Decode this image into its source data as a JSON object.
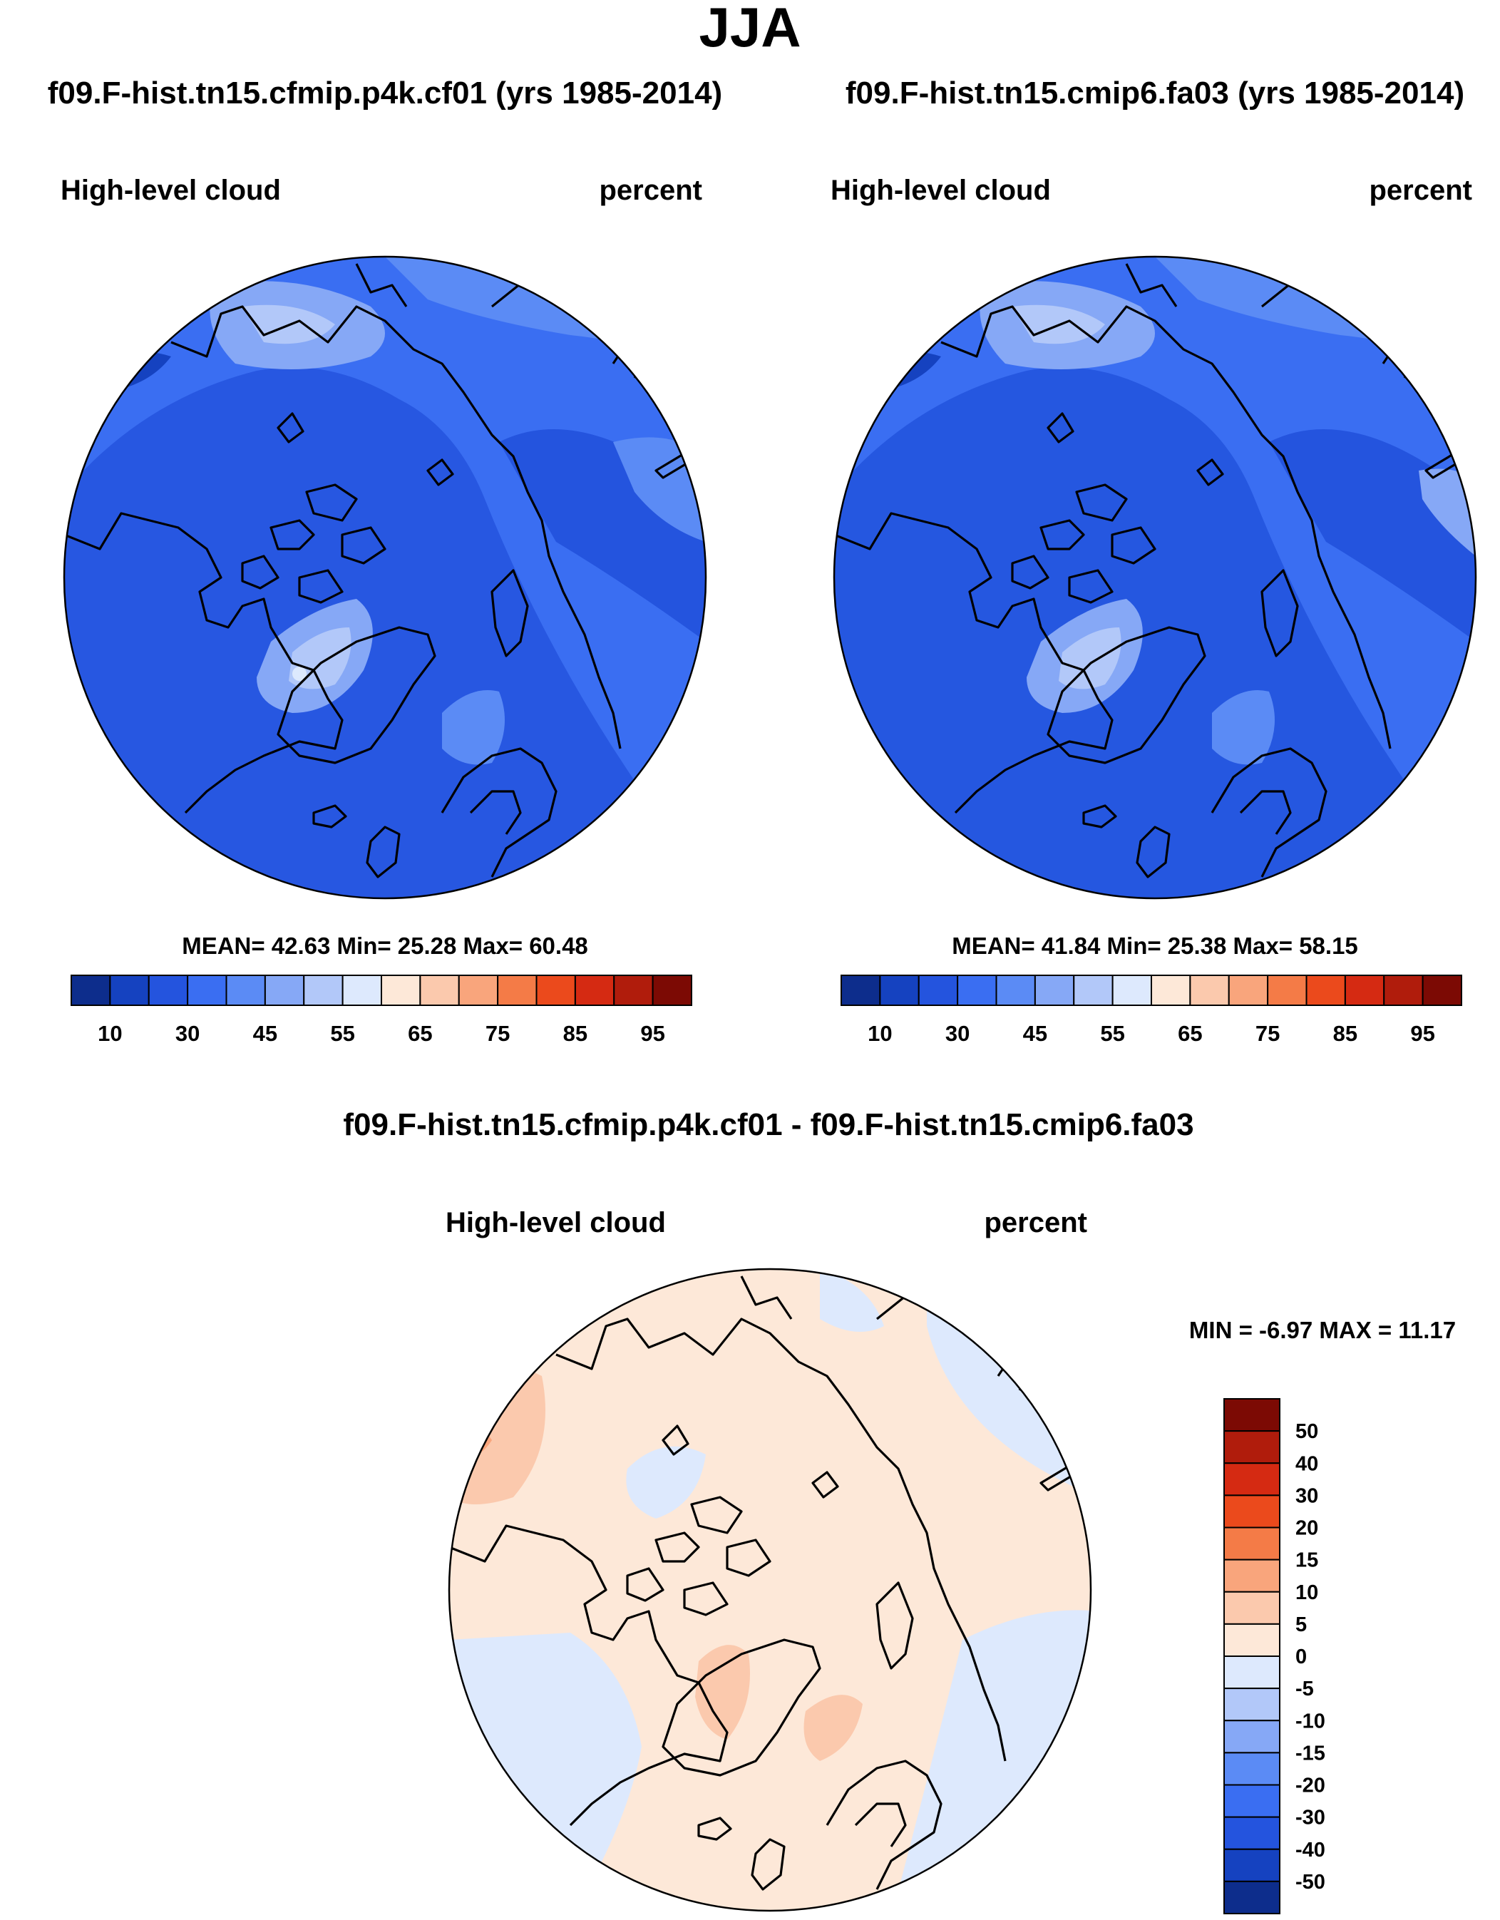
{
  "title": "JJA",
  "variable": "High-level cloud",
  "units": "percent",
  "panels": [
    {
      "id": "left",
      "title": "f09.F-hist.tn15.cfmip.p4k.cf01 (yrs 1985-2014)",
      "stats": "MEAN=  42.63  Min=  25.28  Max=  60.48",
      "field": "absolute",
      "colors": [
        "#0d2d8c",
        "#1542c0",
        "#2454de",
        "#3a6ef2",
        "#5b8bf5",
        "#86a8f6",
        "#b2c8f9",
        "#dde9fd",
        "#fde8d8",
        "#fbc9ad",
        "#f9a57c",
        "#f47b47",
        "#eb4a1c",
        "#d52a12",
        "#b01c0c",
        "#7c0a04"
      ],
      "tick_labels": [
        "10",
        "30",
        "45",
        "55",
        "65",
        "75",
        "85",
        "95"
      ]
    },
    {
      "id": "right",
      "title": "f09.F-hist.tn15.cmip6.fa03 (yrs 1985-2014)",
      "stats": "MEAN=  41.84  Min=  25.38  Max=  58.15",
      "field": "absolute",
      "colors": [
        "#0d2d8c",
        "#1542c0",
        "#2454de",
        "#3a6ef2",
        "#5b8bf5",
        "#86a8f6",
        "#b2c8f9",
        "#dde9fd",
        "#fde8d8",
        "#fbc9ad",
        "#f9a57c",
        "#f47b47",
        "#eb4a1c",
        "#d52a12",
        "#b01c0c",
        "#7c0a04"
      ],
      "tick_labels": [
        "10",
        "30",
        "45",
        "55",
        "65",
        "75",
        "85",
        "95"
      ]
    }
  ],
  "difference": {
    "title": "f09.F-hist.tn15.cfmip.p4k.cf01 - f09.F-hist.tn15.cmip6.fa03",
    "stats": "MIN =  -6.97 MAX =  11.17",
    "colors_top_to_bottom": [
      "#7c0a04",
      "#b01c0c",
      "#d52a12",
      "#eb4a1c",
      "#f47b47",
      "#f9a57c",
      "#fbc9ad",
      "#fde8d8",
      "#dde9fd",
      "#b2c8f9",
      "#86a8f6",
      "#5b8bf5",
      "#3a6ef2",
      "#2454de",
      "#1542c0",
      "#0d2d8c"
    ],
    "tick_labels": [
      "50",
      "40",
      "30",
      "20",
      "15",
      "10",
      "5",
      "0",
      "-5",
      "-10",
      "-15",
      "-20",
      "-30",
      "-40",
      "-50"
    ]
  },
  "colors": {
    "coast": "#000000",
    "deep_blue": "#2454de",
    "mid_blue": "#3a6ef2",
    "light_blue": "#86a8f6",
    "pale_blue": "#dde9fd",
    "peach": "#fde8d8",
    "salmon": "#fbc9ad"
  }
}
